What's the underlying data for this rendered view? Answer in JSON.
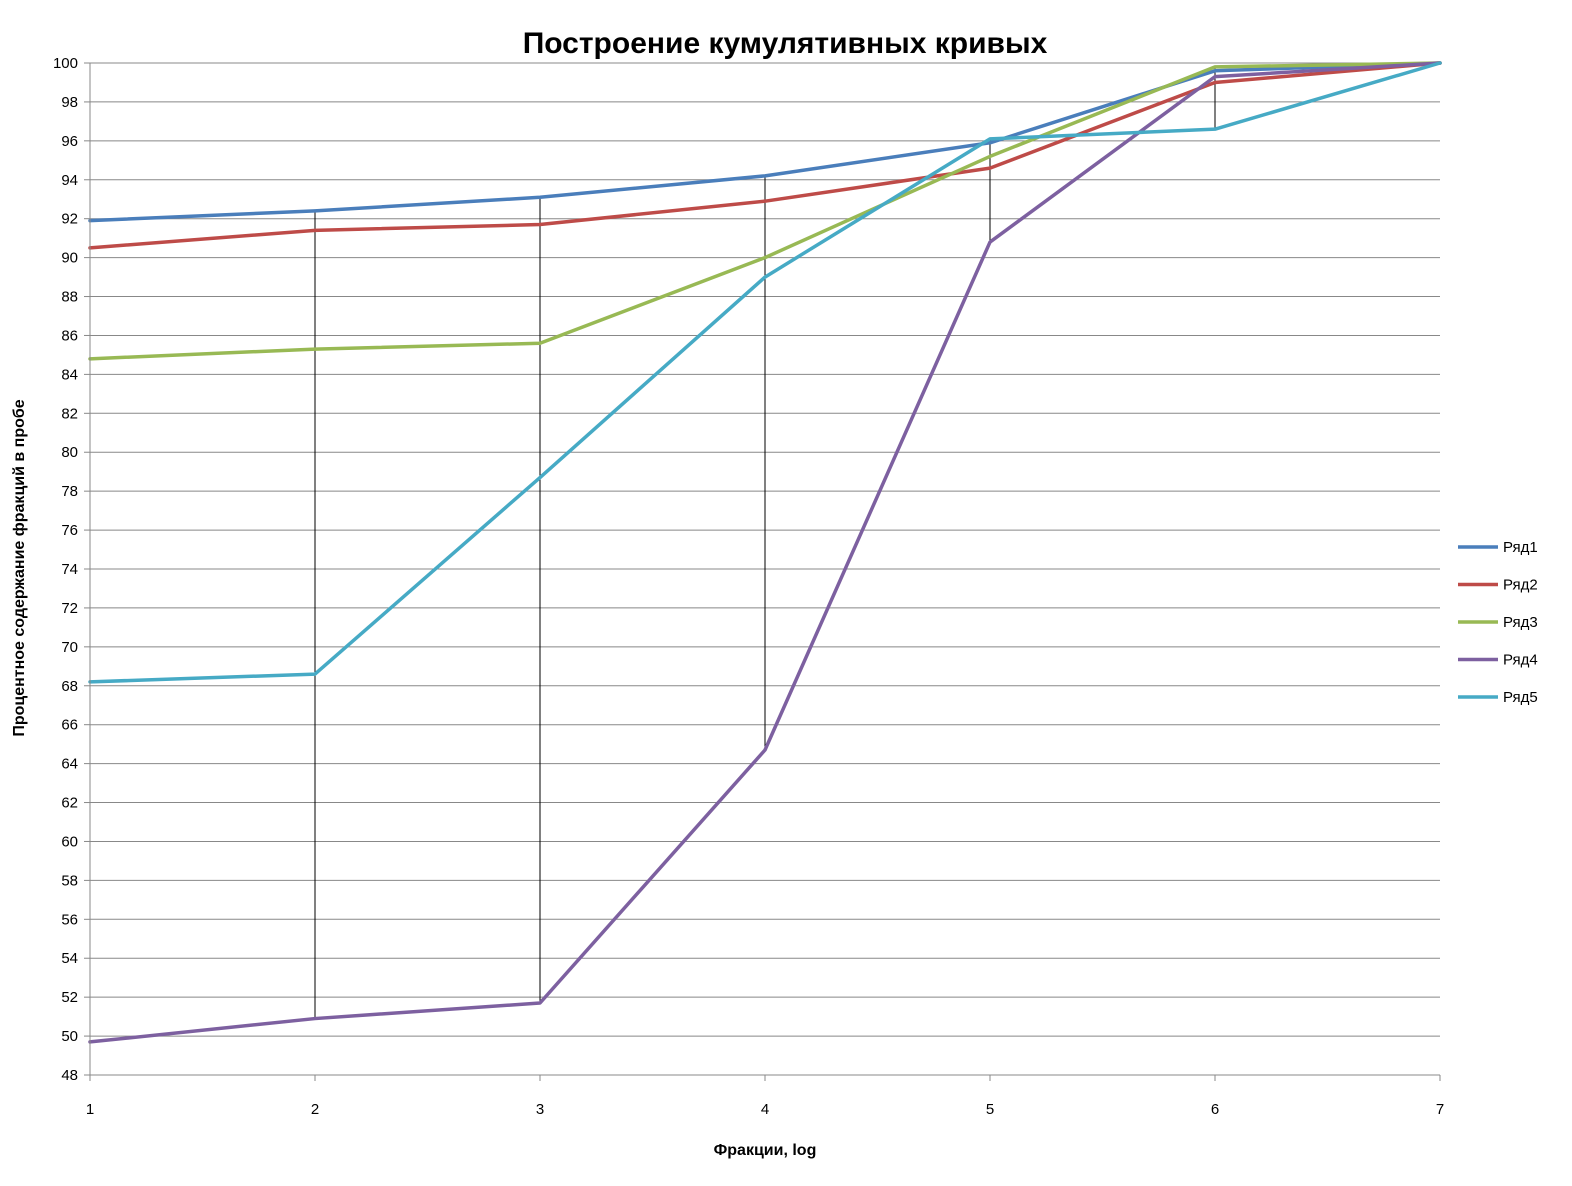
{
  "chart_data": {
    "type": "line",
    "title": "Построение кумулятивных кривых",
    "xlabel": "Фракции, log",
    "ylabel": "Процентное содержание фракций в пробе",
    "x": [
      1,
      2,
      3,
      4,
      5,
      6,
      7
    ],
    "xlim": [
      1,
      7
    ],
    "ylim": [
      48,
      100
    ],
    "y_tick_step": 2,
    "grid": "horizontal",
    "legend_position": "right",
    "series": [
      {
        "name": "Ряд1",
        "color": "#4a7ebb",
        "values": [
          91.9,
          92.4,
          93.1,
          94.2,
          95.9,
          99.6,
          100
        ]
      },
      {
        "name": "Ряд2",
        "color": "#be4b48",
        "values": [
          90.5,
          91.4,
          91.7,
          92.9,
          94.6,
          99.0,
          100
        ]
      },
      {
        "name": "Ряд3",
        "color": "#98b954",
        "values": [
          84.8,
          85.3,
          85.6,
          90.0,
          95.2,
          99.8,
          100
        ]
      },
      {
        "name": "Ряд4",
        "color": "#7d60a0",
        "values": [
          49.7,
          50.9,
          51.7,
          64.7,
          90.8,
          99.3,
          100
        ]
      },
      {
        "name": "Ряд5",
        "color": "#46aac5",
        "values": [
          68.2,
          68.6,
          78.7,
          89.0,
          96.1,
          96.6,
          100
        ]
      }
    ],
    "drop_lines": true
  }
}
